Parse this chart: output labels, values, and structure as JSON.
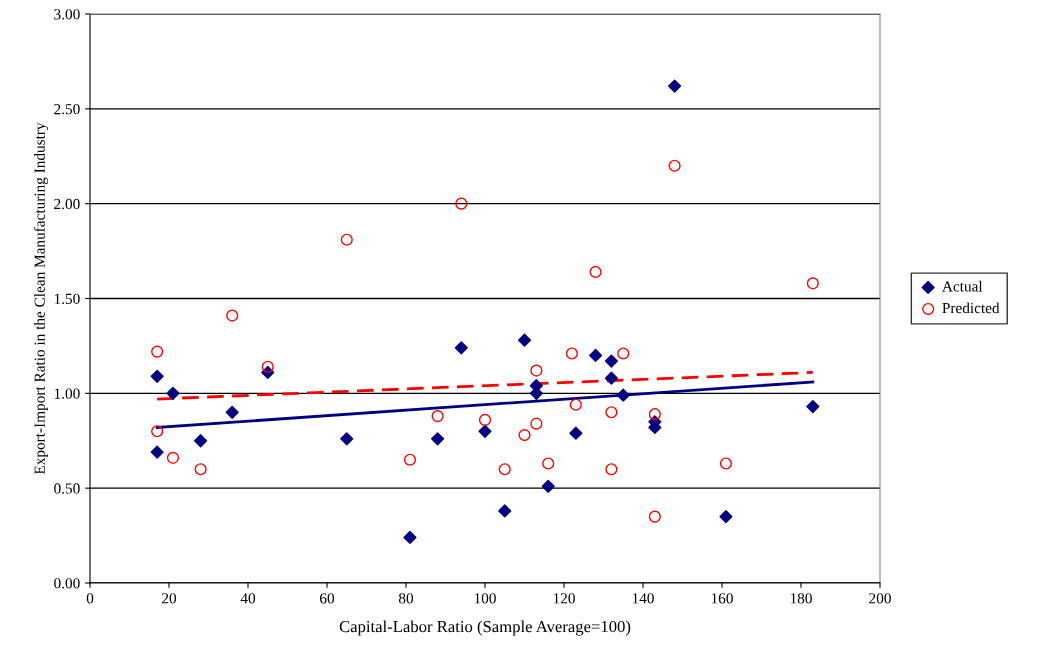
{
  "chart_data": {
    "type": "scatter",
    "xlabel": "Capital-Labor Ratio (Sample Average=100)",
    "ylabel": "Export-Import Ratio in the Clean Manufacturing Industry",
    "xlim": [
      0,
      200
    ],
    "xticks": [
      0,
      20,
      40,
      60,
      80,
      100,
      120,
      140,
      160,
      180,
      200
    ],
    "ylim": [
      0,
      3
    ],
    "yticks": [
      {
        "value": 0,
        "label": "0.00"
      },
      {
        "value": 0.5,
        "label": "0.50"
      },
      {
        "value": 1,
        "label": "1.00"
      },
      {
        "value": 1.5,
        "label": "1.50"
      },
      {
        "value": 2,
        "label": "2.00"
      },
      {
        "value": 2.5,
        "label": "2.50"
      },
      {
        "value": 3,
        "label": "3.00"
      }
    ],
    "grid": "y",
    "legend": "right",
    "series": [
      {
        "name": "Actual",
        "color": "#000080",
        "marker": "diamond",
        "x": [
          17,
          17,
          21,
          28,
          36,
          45,
          65,
          81,
          88,
          94,
          100,
          105,
          110,
          113,
          113,
          116,
          123,
          128,
          132,
          132,
          135,
          143,
          143,
          148,
          161,
          183
        ],
        "values": [
          1.09,
          0.69,
          1.0,
          0.75,
          0.9,
          1.11,
          0.76,
          0.24,
          0.76,
          1.24,
          0.8,
          0.38,
          1.28,
          1.04,
          1.0,
          0.51,
          0.79,
          1.2,
          1.17,
          1.08,
          0.99,
          0.85,
          0.82,
          2.62,
          0.35,
          0.93
        ]
      },
      {
        "name": "Predicted",
        "color": "#ff0000",
        "marker": "circle",
        "x": [
          17,
          17,
          21,
          28,
          36,
          45,
          65,
          81,
          88,
          94,
          100,
          105,
          110,
          113,
          113,
          116,
          122,
          123,
          128,
          132,
          132,
          135,
          143,
          143,
          148,
          161,
          183
        ],
        "values": [
          1.22,
          0.8,
          0.66,
          0.6,
          1.41,
          1.14,
          1.81,
          0.65,
          0.88,
          2.0,
          0.86,
          0.6,
          0.78,
          0.84,
          1.12,
          0.63,
          1.21,
          0.94,
          1.64,
          0.9,
          0.6,
          1.21,
          0.89,
          0.35,
          2.2,
          0.63,
          1.58
        ]
      },
      {
        "type": "line",
        "color": "#000080",
        "line_style": "solid",
        "x": [
          17,
          183
        ],
        "values": [
          0.82,
          1.06
        ]
      },
      {
        "type": "line",
        "color": "#ff0000",
        "line_style": "dashed",
        "x": [
          17,
          183
        ],
        "values": [
          0.97,
          1.11
        ]
      }
    ]
  }
}
